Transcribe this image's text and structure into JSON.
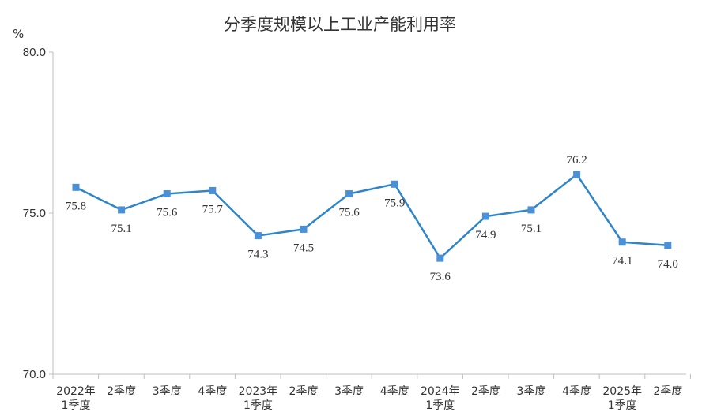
{
  "chart_data": {
    "type": "line",
    "title": "分季度规模以上工业产能利用率",
    "ylabel": "%",
    "ylim": [
      70.0,
      80.0
    ],
    "yticks": [
      "80.0",
      "75.0",
      "70.0"
    ],
    "categories": [
      [
        "2022年",
        "1季度"
      ],
      [
        "2季度"
      ],
      [
        "3季度"
      ],
      [
        "4季度"
      ],
      [
        "2023年",
        "1季度"
      ],
      [
        "2季度"
      ],
      [
        "3季度"
      ],
      [
        "4季度"
      ],
      [
        "2024年",
        "1季度"
      ],
      [
        "2季度"
      ],
      [
        "3季度"
      ],
      [
        "4季度"
      ],
      [
        "2025年",
        "1季度"
      ],
      [
        "2季度"
      ]
    ],
    "values": [
      75.8,
      75.1,
      75.6,
      75.7,
      74.3,
      74.5,
      75.6,
      75.9,
      73.6,
      74.9,
      75.1,
      76.2,
      74.1,
      74.0
    ],
    "value_labels": [
      "75.8",
      "75.1",
      "75.6",
      "75.7",
      "74.3",
      "74.5",
      "75.6",
      "75.9",
      "73.6",
      "74.9",
      "75.1",
      "76.2",
      "74.1",
      "74.0"
    ],
    "series_color": "#2E86C8",
    "marker_color": "#4A90D9",
    "axis_color": "#BFBFBF"
  }
}
